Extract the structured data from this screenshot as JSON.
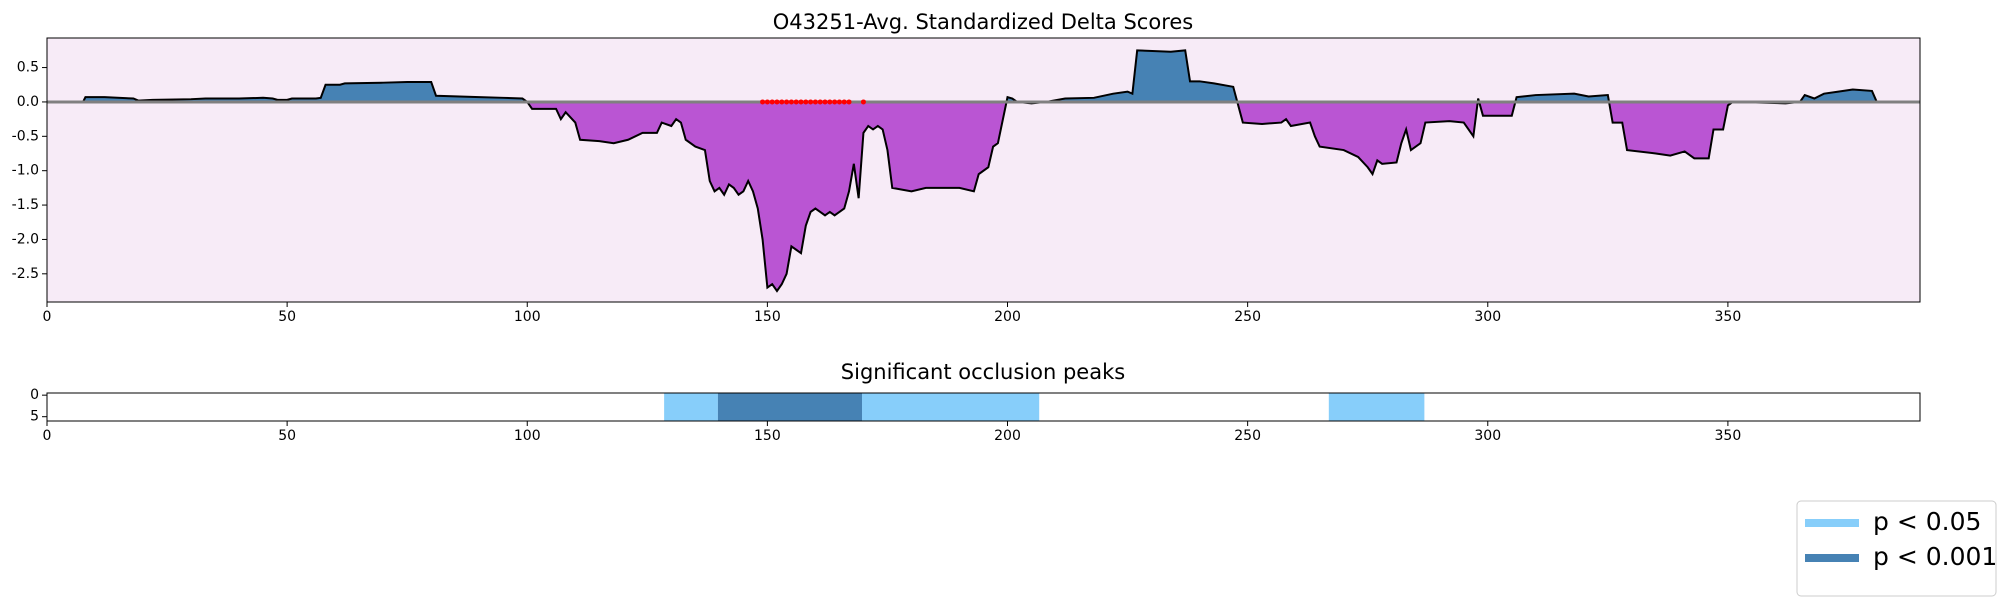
{
  "chart_data": [
    {
      "type": "area",
      "title": "O43251-Avg. Standardized Delta Scores",
      "x": [
        0,
        7.5,
        8,
        12,
        18,
        19,
        22,
        30,
        33,
        40,
        45,
        47,
        48,
        50,
        51,
        56,
        57,
        58,
        61,
        62,
        70,
        75,
        80,
        81,
        90,
        95,
        99,
        100,
        101,
        106,
        107,
        108,
        110,
        111,
        115,
        118,
        121,
        124,
        127,
        128,
        130,
        131,
        132,
        133,
        135,
        137,
        138,
        139,
        140,
        141,
        142,
        143,
        144,
        145,
        146,
        147,
        148,
        149,
        150,
        151,
        152,
        153,
        154,
        155,
        156,
        157,
        158,
        159,
        160,
        161,
        162,
        163,
        164,
        165,
        166,
        167,
        168,
        169,
        170,
        171,
        172,
        173,
        174,
        175,
        176,
        180,
        183,
        186,
        190,
        193,
        194,
        196,
        197,
        198,
        200,
        201,
        202,
        205,
        208,
        212,
        218,
        222,
        225,
        226,
        227,
        234,
        237,
        238,
        240,
        243,
        247,
        249,
        253,
        257,
        258,
        259,
        263,
        264,
        265,
        270,
        273,
        275,
        276,
        277,
        278,
        281,
        282,
        283,
        284,
        286,
        287,
        292,
        295,
        296,
        297,
        298,
        299,
        305,
        306,
        310,
        318,
        321,
        325,
        326,
        328,
        329,
        335,
        338,
        341,
        343,
        346,
        347,
        349,
        350,
        351,
        362,
        365,
        366,
        368,
        370,
        373,
        376,
        380,
        381,
        390
      ],
      "values": [
        0,
        0,
        0.07,
        0.07,
        0.05,
        0.02,
        0.03,
        0.04,
        0.05,
        0.05,
        0.06,
        0.05,
        0.03,
        0.03,
        0.05,
        0.05,
        0.06,
        0.25,
        0.25,
        0.27,
        0.28,
        0.29,
        0.29,
        0.09,
        0.07,
        0.06,
        0.05,
        0,
        -0.1,
        -0.1,
        -0.25,
        -0.15,
        -0.3,
        -0.55,
        -0.57,
        -0.6,
        -0.55,
        -0.45,
        -0.45,
        -0.3,
        -0.35,
        -0.25,
        -0.3,
        -0.55,
        -0.65,
        -0.7,
        -1.15,
        -1.3,
        -1.25,
        -1.35,
        -1.2,
        -1.25,
        -1.35,
        -1.3,
        -1.15,
        -1.3,
        -1.55,
        -2.0,
        -2.7,
        -2.65,
        -2.75,
        -2.65,
        -2.5,
        -2.1,
        -2.15,
        -2.2,
        -1.8,
        -1.6,
        -1.55,
        -1.6,
        -1.65,
        -1.6,
        -1.65,
        -1.6,
        -1.55,
        -1.3,
        -0.9,
        -1.4,
        -0.45,
        -0.35,
        -0.4,
        -0.35,
        -0.4,
        -0.7,
        -1.25,
        -1.3,
        -1.25,
        -1.25,
        -1.25,
        -1.3,
        -1.05,
        -0.95,
        -0.65,
        -0.6,
        0.07,
        0.05,
        0,
        -0.02,
        0,
        0.05,
        0.06,
        0.12,
        0.15,
        0.12,
        0.75,
        0.73,
        0.75,
        0.3,
        0.3,
        0.27,
        0.22,
        -0.3,
        -0.32,
        -0.3,
        -0.25,
        -0.35,
        -0.3,
        -0.5,
        -0.65,
        -0.7,
        -0.8,
        -0.95,
        -1.05,
        -0.85,
        -0.9,
        -0.88,
        -0.6,
        -0.4,
        -0.7,
        -0.6,
        -0.3,
        -0.28,
        -0.3,
        -0.4,
        -0.5,
        0.05,
        -0.2,
        -0.2,
        0.07,
        0.1,
        0.12,
        0.08,
        0.1,
        -0.3,
        -0.3,
        -0.7,
        -0.75,
        -0.78,
        -0.72,
        -0.82,
        -0.82,
        -0.4,
        -0.4,
        -0.05,
        0,
        -0.02,
        0,
        0.1,
        0.05,
        0.12,
        0.15,
        0.18,
        0.16,
        0,
        0
      ],
      "pos_color": "#4682b4",
      "neg_color": "#ba55d3",
      "line_color": "#000000",
      "zero_color": "#808080",
      "background": "#f7ebf7",
      "markers": {
        "color": "#ff0000",
        "x": [
          149,
          150,
          151,
          152,
          153,
          154,
          155,
          156,
          157,
          158,
          159,
          160,
          161,
          162,
          163,
          164,
          165,
          166,
          167,
          170
        ],
        "values": [
          0,
          0,
          0,
          0,
          0,
          0,
          0,
          0,
          0,
          0,
          0,
          0,
          0,
          0,
          0,
          0,
          0,
          0,
          0,
          0
        ]
      },
      "xlim": [
        0,
        390
      ],
      "ylim": [
        -2.91,
        0.93
      ],
      "xticks": [
        0,
        50,
        100,
        150,
        200,
        250,
        300,
        350
      ],
      "yticks": [
        0.5,
        {
          "value": 0,
          "label": "0.0"
        },
        -0.5,
        {
          "value": -1,
          "label": "-1.0"
        },
        -1.5,
        {
          "value": -2,
          "label": "-2.0"
        },
        -2.5
      ]
    },
    {
      "type": "span",
      "title": "Significant occlusion peaks",
      "series": [
        {
          "name": "p < 0.05",
          "color": "#87cefa",
          "ranges": [
            [
              128.5,
              139.7
            ],
            [
              169.7,
              206.6
            ],
            [
              266.9,
              286.8
            ]
          ]
        },
        {
          "name": "p < 0.001",
          "color": "#4682b4",
          "ranges": [
            [
              139.7,
              169.7
            ]
          ]
        }
      ],
      "xlim": [
        0,
        390
      ],
      "ylim": [
        6,
        -0.5
      ],
      "xticks": [
        0,
        50,
        100,
        150,
        200,
        250,
        300,
        350
      ],
      "yticks": [
        0,
        5
      ],
      "legend": "lower right"
    }
  ]
}
